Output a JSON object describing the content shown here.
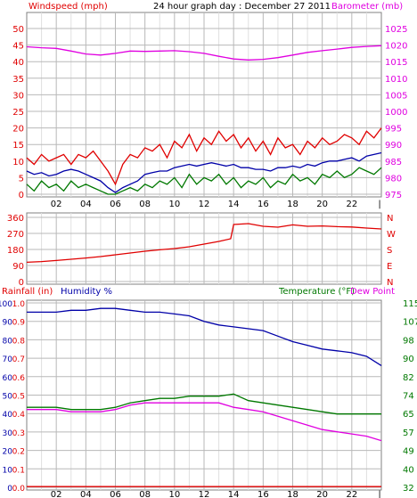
{
  "header": {
    "left_title": "Windspeed (mph)",
    "center_title": "24 hour graph day : December 27 2011",
    "right_title": "Barometer (mb)"
  },
  "colors": {
    "red": "#e00000",
    "blue": "#0000a8",
    "green": "#007800",
    "magenta": "#e000e0",
    "grid": "#b8b8b8",
    "axis": "#000000"
  },
  "x_axis": {
    "ticks": [
      "02",
      "04",
      "06",
      "08",
      "10",
      "12",
      "14",
      "16",
      "18",
      "20",
      "22"
    ],
    "range_hours": [
      0,
      24
    ]
  },
  "chart_data": [
    {
      "type": "line",
      "title": "",
      "left_axis_label": "Windspeed (mph)",
      "right_axis_label": "Barometer (mb)",
      "left_ticks": [
        "0",
        "5",
        "10",
        "15",
        "20",
        "25",
        "30",
        "35",
        "40",
        "45",
        "50"
      ],
      "right_ticks": [
        "975",
        "980",
        "985",
        "990",
        "995",
        "1000",
        "1005",
        "1010",
        "1015",
        "1020",
        "1025"
      ],
      "ylim_left": [
        0,
        50
      ],
      "ylim_right": [
        975,
        1025
      ],
      "grid": true,
      "series": [
        {
          "color": "magenta",
          "axis": "right",
          "x": [
            0,
            1,
            2,
            3,
            4,
            5,
            6,
            7,
            8,
            9,
            10,
            11,
            12,
            13,
            14,
            15,
            16,
            17,
            18,
            19,
            20,
            21,
            22,
            23,
            24
          ],
          "values": [
            1019.5,
            1019.2,
            1019,
            1018.2,
            1017.3,
            1017,
            1017.5,
            1018.2,
            1018.1,
            1018.2,
            1018.3,
            1018,
            1017.5,
            1016.6,
            1015.8,
            1015.5,
            1015.7,
            1016.2,
            1017,
            1017.8,
            1018.3,
            1018.8,
            1019.3,
            1019.6,
            1019.8
          ]
        },
        {
          "color": "red",
          "axis": "left",
          "name": "",
          "x": [
            0,
            0.5,
            1,
            1.5,
            2,
            2.5,
            3,
            3.5,
            4,
            4.5,
            5,
            5.5,
            6,
            6.5,
            7,
            7.5,
            8,
            8.5,
            9,
            9.5,
            10,
            10.5,
            11,
            11.5,
            12,
            12.5,
            13,
            13.5,
            14,
            14.5,
            15,
            15.5,
            16,
            16.5,
            17,
            17.5,
            18,
            18.5,
            19,
            19.5,
            20,
            20.5,
            21,
            21.5,
            22,
            22.5,
            23,
            23.5,
            24
          ],
          "values": [
            11,
            9,
            12,
            10,
            11,
            12,
            9,
            12,
            11,
            13,
            10,
            7,
            3,
            9,
            12,
            11,
            14,
            13,
            15,
            11,
            16,
            14,
            18,
            13,
            17,
            15,
            19,
            16,
            18,
            14,
            17,
            13,
            16,
            12,
            17,
            14,
            15,
            12,
            16,
            14,
            17,
            15,
            16,
            18,
            17,
            15,
            19,
            17,
            20
          ]
        },
        {
          "color": "blue",
          "axis": "left",
          "x": [
            0,
            0.5,
            1,
            1.5,
            2,
            2.5,
            3,
            3.5,
            4,
            4.5,
            5,
            5.5,
            6,
            6.5,
            7,
            7.5,
            8,
            8.5,
            9,
            9.5,
            10,
            10.5,
            11,
            11.5,
            12,
            12.5,
            13,
            13.5,
            14,
            14.5,
            15,
            15.5,
            16,
            16.5,
            17,
            17.5,
            18,
            18.5,
            19,
            19.5,
            20,
            20.5,
            21,
            21.5,
            22,
            22.5,
            23,
            23.5,
            24
          ],
          "values": [
            7,
            6,
            6.5,
            5.5,
            6,
            7,
            7.5,
            7,
            6,
            5,
            4,
            2,
            0.5,
            2,
            3,
            4,
            6,
            6.5,
            7,
            7,
            8,
            8.5,
            9,
            8.5,
            9,
            9.5,
            9,
            8.5,
            9,
            8,
            8,
            7.5,
            7.5,
            7,
            8,
            8,
            8.5,
            8,
            9,
            8.5,
            9.5,
            10,
            10,
            10.5,
            11,
            10,
            11.5,
            12,
            12.5
          ]
        },
        {
          "color": "green",
          "axis": "left",
          "x": [
            0,
            0.5,
            1,
            1.5,
            2,
            2.5,
            3,
            3.5,
            4,
            4.5,
            5,
            5.5,
            6,
            6.5,
            7,
            7.5,
            8,
            8.5,
            9,
            9.5,
            10,
            10.5,
            11,
            11.5,
            12,
            12.5,
            13,
            13.5,
            14,
            14.5,
            15,
            15.5,
            16,
            16.5,
            17,
            17.5,
            18,
            18.5,
            19,
            19.5,
            20,
            20.5,
            21,
            21.5,
            22,
            22.5,
            23,
            23.5,
            24
          ],
          "values": [
            3,
            1,
            4,
            2,
            3,
            1,
            4,
            2,
            3,
            2,
            1,
            0,
            0,
            1,
            2,
            1,
            3,
            2,
            4,
            3,
            5,
            2,
            6,
            3,
            5,
            4,
            6,
            3,
            5,
            2,
            4,
            3,
            5,
            2,
            4,
            3,
            6,
            4,
            5,
            3,
            6,
            5,
            7,
            5,
            6,
            8,
            7,
            6,
            8
          ]
        }
      ]
    },
    {
      "type": "line",
      "title": "",
      "left_ticks": [
        "0",
        "90",
        "180",
        "270",
        "360"
      ],
      "right_ticks": [
        "N",
        "W",
        "S",
        "E",
        "N"
      ],
      "ylim": [
        0,
        360
      ],
      "grid": true,
      "series": [
        {
          "color": "red",
          "x": [
            0,
            1,
            2,
            3,
            4,
            5,
            6,
            7,
            8,
            9,
            10,
            11,
            12,
            13,
            13.8,
            14,
            15,
            16,
            17,
            18,
            19,
            20,
            21,
            22,
            23,
            24
          ],
          "values": [
            108,
            112,
            118,
            125,
            132,
            140,
            150,
            160,
            170,
            178,
            185,
            195,
            210,
            225,
            240,
            320,
            325,
            310,
            305,
            318,
            310,
            312,
            308,
            306,
            300,
            295
          ]
        }
      ]
    },
    {
      "type": "line",
      "title": "",
      "left_labels": {
        "rainfall": "Rainfall (in)",
        "humidity": "Humidity %"
      },
      "right_labels": {
        "temperature": "Temperature (°F)",
        "dewpoint": "Dew Point"
      },
      "rainfall_ticks": [
        "0.0",
        "0.1",
        "0.2",
        "0.3",
        "0.4",
        "0.5",
        "0.6",
        "0.7",
        "0.8",
        "0.9",
        "1.0"
      ],
      "humidity_ticks": [
        "0",
        "10",
        "20",
        "30",
        "40",
        "50",
        "60",
        "70",
        "80",
        "90",
        "100"
      ],
      "temperature_ticks": [
        "32",
        "40",
        "49",
        "57",
        "65",
        "74",
        "82",
        "90",
        "98",
        "107",
        "115"
      ],
      "ylim_humidity": [
        0,
        100
      ],
      "ylim_temperature": [
        32,
        115
      ],
      "grid": true,
      "series": [
        {
          "color": "blue",
          "axis": "humidity",
          "x": [
            0,
            1,
            2,
            3,
            4,
            5,
            6,
            7,
            8,
            9,
            10,
            11,
            12,
            13,
            14,
            15,
            16,
            17,
            18,
            19,
            20,
            21,
            22,
            23,
            24
          ],
          "values": [
            95,
            95,
            95,
            96,
            96,
            97,
            97,
            96,
            95,
            95,
            94,
            93,
            90,
            88,
            87,
            86,
            85,
            82,
            79,
            77,
            75,
            74,
            73,
            71,
            66
          ]
        },
        {
          "color": "green",
          "axis": "temperature",
          "x": [
            0,
            1,
            2,
            3,
            4,
            5,
            6,
            7,
            8,
            9,
            10,
            11,
            12,
            13,
            14,
            15,
            16,
            17,
            18,
            19,
            20,
            21,
            22,
            23,
            24
          ],
          "values": [
            68,
            68,
            68,
            67,
            67,
            67,
            68,
            70,
            71,
            72,
            72,
            73,
            73,
            73,
            74,
            71,
            70,
            69,
            68,
            67,
            66,
            65,
            65,
            65,
            65
          ]
        },
        {
          "color": "magenta",
          "axis": "temperature",
          "x": [
            0,
            1,
            2,
            3,
            4,
            5,
            6,
            7,
            8,
            9,
            10,
            11,
            12,
            13,
            14,
            15,
            16,
            17,
            18,
            19,
            20,
            21,
            22,
            23,
            24
          ],
          "values": [
            67,
            67,
            67,
            66,
            66,
            66,
            67,
            69,
            70,
            70,
            70,
            70,
            70,
            70,
            68,
            67,
            66,
            64,
            62,
            60,
            58,
            57,
            56,
            55,
            53
          ]
        },
        {
          "color": "red",
          "axis": "humidity",
          "x": [
            0,
            24
          ],
          "values": [
            0.4,
            0.4
          ]
        }
      ]
    }
  ]
}
